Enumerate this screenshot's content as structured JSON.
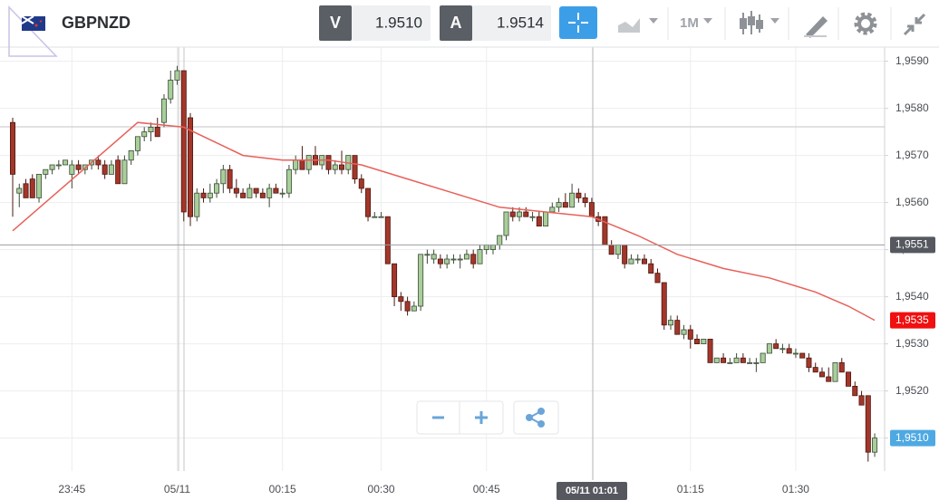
{
  "toolbar": {
    "symbol": "GBPNZD",
    "sell_label": "V",
    "sell_price": "1.9510",
    "buy_label": "A",
    "buy_price": "1.9514",
    "timeframe": "1M"
  },
  "chart_data": {
    "type": "candlestick",
    "crosshair_label": "05/11 01:01",
    "categories": [
      null,
      null,
      null,
      null,
      null,
      null,
      null,
      null,
      null,
      "23:45",
      null,
      null,
      null,
      null,
      null,
      null,
      null,
      null,
      null,
      null,
      null,
      null,
      null,
      null,
      null,
      "05/11",
      null,
      null,
      null,
      null,
      null,
      null,
      null,
      null,
      null,
      null,
      null,
      null,
      null,
      null,
      null,
      "00:15",
      null,
      null,
      null,
      null,
      null,
      null,
      null,
      null,
      null,
      null,
      null,
      null,
      null,
      null,
      "00:30",
      null,
      null,
      null,
      null,
      null,
      null,
      null,
      null,
      null,
      null,
      null,
      null,
      null,
      null,
      null,
      "00:45",
      null,
      null,
      null,
      null,
      null,
      null,
      null,
      null,
      null,
      null,
      null,
      null,
      null,
      null,
      null,
      null,
      null,
      null,
      null,
      null,
      null,
      null,
      null,
      null,
      null,
      null,
      null,
      null,
      null,
      null,
      "01:15",
      null,
      null,
      null,
      null,
      null,
      null,
      null,
      null,
      null,
      null,
      null,
      null,
      null,
      null,
      null,
      "01:30",
      null,
      null,
      null,
      null,
      null,
      null,
      null,
      null,
      null,
      null,
      null,
      null
    ],
    "open": [
      1.9577,
      1.9562,
      1.9564,
      1.9565,
      1.9561,
      1.9566,
      1.9567,
      1.9568,
      1.9568,
      1.9566,
      1.9568,
      1.9567,
      1.9568,
      1.9569,
      1.9568,
      1.9566,
      1.9569,
      1.9564,
      1.9569,
      1.9571,
      1.9574,
      1.9575,
      1.9576,
      1.9577,
      1.9582,
      1.9586,
      1.9588,
      1.9578,
      1.9557,
      1.9562,
      1.9561,
      1.9562,
      1.9564,
      1.9567,
      1.9563,
      1.9562,
      1.9561,
      1.9563,
      1.9562,
      1.9561,
      1.9563,
      1.9562,
      1.9562,
      1.9567,
      1.9569,
      1.9567,
      1.957,
      1.9568,
      1.957,
      1.9567,
      1.9568,
      1.9567,
      1.957,
      1.9565,
      1.9563,
      1.9557,
      1.9557,
      1.9557,
      1.9547,
      1.954,
      1.9539,
      1.9537,
      1.9538,
      1.9549,
      1.9548,
      1.9548,
      1.9547,
      1.9548,
      1.9548,
      1.9548,
      1.9549,
      1.9547,
      1.955,
      1.955,
      1.9551,
      1.9553,
      1.9558,
      1.9557,
      1.9558,
      1.9557,
      1.9557,
      1.9555,
      1.9558,
      1.9559,
      1.956,
      1.9559,
      1.9562,
      1.9561,
      1.956,
      1.9557,
      1.9557,
      1.9551,
      1.9549,
      1.9551,
      1.9547,
      1.9548,
      1.9548,
      1.9547,
      1.9545,
      1.9543,
      1.9534,
      1.9535,
      1.9532,
      1.9533,
      1.9531,
      1.953,
      1.9531,
      1.9526,
      1.9527,
      1.9526,
      1.9526,
      1.9527,
      1.9526,
      1.9526,
      1.9526,
      1.9528,
      1.953,
      1.9529,
      1.9529,
      1.9528,
      1.9528,
      1.9527,
      1.9525,
      1.9524,
      1.9523,
      1.9522,
      1.9526,
      1.9524,
      1.9521,
      1.9519,
      1.9519,
      1.9507
    ],
    "high": [
      1.9578,
      1.9564,
      1.9565,
      1.9566,
      1.9566,
      1.9567,
      1.9568,
      1.9569,
      1.9569,
      1.9569,
      1.9569,
      1.9568,
      1.9569,
      1.957,
      1.9569,
      1.9569,
      1.957,
      1.957,
      1.9571,
      1.9574,
      1.9576,
      1.9577,
      1.9578,
      1.9583,
      1.9588,
      1.9589,
      1.9588,
      1.9579,
      1.9563,
      1.9563,
      1.9564,
      1.9565,
      1.9568,
      1.9568,
      1.9565,
      1.9563,
      1.9564,
      1.9563,
      1.9563,
      1.9564,
      1.9564,
      1.9563,
      1.9568,
      1.957,
      1.9572,
      1.957,
      1.9572,
      1.957,
      1.957,
      1.9569,
      1.9571,
      1.957,
      1.957,
      1.9566,
      1.9563,
      1.9558,
      1.9558,
      1.9557,
      1.9547,
      1.9541,
      1.954,
      1.9539,
      1.9549,
      1.955,
      1.955,
      1.9549,
      1.9549,
      1.9549,
      1.9549,
      1.955,
      1.955,
      1.9551,
      1.9551,
      1.9551,
      1.9553,
      1.9558,
      1.9559,
      1.9559,
      1.9559,
      1.9558,
      1.9558,
      1.9558,
      1.956,
      1.9561,
      1.9562,
      1.9564,
      1.9563,
      1.9562,
      1.9561,
      1.9558,
      1.9557,
      1.9552,
      1.9551,
      1.9551,
      1.9549,
      1.9549,
      1.9549,
      1.9548,
      1.9546,
      1.9543,
      1.9536,
      1.9536,
      1.9534,
      1.9534,
      1.9532,
      1.9531,
      1.9531,
      1.9527,
      1.9528,
      1.9527,
      1.9528,
      1.9528,
      1.9527,
      1.9527,
      1.9528,
      1.953,
      1.9531,
      1.953,
      1.953,
      1.9529,
      1.9528,
      1.9528,
      1.9526,
      1.9525,
      1.9525,
      1.9526,
      1.9527,
      1.9524,
      1.9522,
      1.952,
      1.9519,
      1.9511
    ],
    "low": [
      1.9557,
      1.9559,
      1.9561,
      1.9561,
      1.956,
      1.9565,
      1.9566,
      1.9567,
      1.9568,
      1.9563,
      1.9566,
      1.9566,
      1.9567,
      1.9567,
      1.9565,
      1.9566,
      1.9564,
      1.9564,
      1.9568,
      1.957,
      1.9573,
      1.9573,
      1.9574,
      1.9576,
      1.9581,
      1.9585,
      1.9556,
      1.9555,
      1.9556,
      1.956,
      1.956,
      1.9561,
      1.9562,
      1.9562,
      1.9561,
      1.9561,
      1.9561,
      1.9561,
      1.9561,
      1.9559,
      1.9562,
      1.9561,
      1.9561,
      1.9566,
      1.9567,
      1.9566,
      1.9568,
      1.9567,
      1.9566,
      1.9566,
      1.9566,
      1.9566,
      1.9564,
      1.9562,
      1.9556,
      1.9557,
      1.9557,
      1.9547,
      1.9538,
      1.9537,
      1.9536,
      1.9537,
      1.9537,
      1.9547,
      1.9547,
      1.9546,
      1.9546,
      1.9547,
      1.9546,
      1.9548,
      1.9546,
      1.9547,
      1.9549,
      1.9549,
      1.955,
      1.9552,
      1.9556,
      1.9556,
      1.9557,
      1.9556,
      1.9555,
      1.9555,
      1.9558,
      1.9558,
      1.9559,
      1.9559,
      1.956,
      1.9559,
      1.9557,
      1.9555,
      1.9551,
      1.9549,
      1.9548,
      1.9546,
      1.9547,
      1.9547,
      1.9547,
      1.9545,
      1.9543,
      1.9533,
      1.9533,
      1.9532,
      1.9531,
      1.9529,
      1.953,
      1.953,
      1.9526,
      1.9526,
      1.9526,
      1.9526,
      1.9526,
      1.9526,
      1.9526,
      1.9524,
      1.9526,
      1.9528,
      1.9529,
      1.9528,
      1.9528,
      1.9527,
      1.9527,
      1.9524,
      1.9524,
      1.9523,
      1.9522,
      1.9522,
      1.9524,
      1.9521,
      1.9519,
      1.9517,
      1.9505,
      1.9506
    ],
    "close": [
      1.9566,
      1.9563,
      1.9561,
      1.9561,
      1.9566,
      1.9567,
      1.9568,
      1.9568,
      1.9569,
      1.9568,
      1.9567,
      1.9568,
      1.9569,
      1.9568,
      1.9566,
      1.9568,
      1.9564,
      1.9569,
      1.9571,
      1.9574,
      1.9575,
      1.9576,
      1.9574,
      1.9582,
      1.9586,
      1.9588,
      1.9558,
      1.9557,
      1.9562,
      1.9561,
      1.9562,
      1.9564,
      1.9567,
      1.9563,
      1.9562,
      1.9561,
      1.9563,
      1.9562,
      1.9561,
      1.9563,
      1.9562,
      1.9562,
      1.9567,
      1.9569,
      1.9567,
      1.957,
      1.9568,
      1.957,
      1.9567,
      1.9568,
      1.9567,
      1.957,
      1.9565,
      1.9563,
      1.9557,
      1.9557,
      1.9557,
      1.9547,
      1.954,
      1.9539,
      1.9537,
      1.9538,
      1.9549,
      1.9549,
      1.9549,
      1.9547,
      1.9548,
      1.9548,
      1.9548,
      1.9549,
      1.9547,
      1.955,
      1.9551,
      1.9551,
      1.9553,
      1.9558,
      1.9557,
      1.9558,
      1.9557,
      1.9557,
      1.9555,
      1.9558,
      1.9559,
      1.956,
      1.9559,
      1.9562,
      1.9561,
      1.956,
      1.9557,
      1.9556,
      1.9551,
      1.9549,
      1.9551,
      1.9547,
      1.9548,
      1.9548,
      1.9547,
      1.9545,
      1.9543,
      1.9534,
      1.9535,
      1.9532,
      1.9533,
      1.9531,
      1.953,
      1.9531,
      1.9526,
      1.9527,
      1.9526,
      1.9526,
      1.9527,
      1.9526,
      1.9526,
      1.9526,
      1.9528,
      1.953,
      1.9529,
      1.9529,
      1.9528,
      1.9528,
      1.9527,
      1.9525,
      1.9524,
      1.9523,
      1.9522,
      1.9526,
      1.9524,
      1.9521,
      1.9519,
      1.9517,
      1.9507,
      1.951
    ],
    "up_color": "#a8cf99",
    "down_color": "#a3362a",
    "ma": {
      "color": "#e8605a",
      "x": [
        0,
        19,
        26,
        35,
        41,
        48,
        53,
        60,
        67,
        74,
        81,
        88,
        95,
        101,
        108,
        115,
        122,
        127,
        131
      ],
      "values": [
        1.9554,
        1.9577,
        1.9576,
        1.957,
        1.9569,
        1.9569,
        1.9568,
        1.9565,
        1.9562,
        1.9559,
        1.9558,
        1.9557,
        1.9553,
        1.9549,
        1.9546,
        1.9544,
        1.9541,
        1.9538,
        1.9535
      ]
    },
    "ylim": [
      1.9503,
      1.9593
    ],
    "yticks": [
      {
        "value": 1.951,
        "label": "1,9510"
      },
      {
        "value": 1.952,
        "label": "1,9520"
      },
      {
        "value": 1.953,
        "label": "1,9530"
      },
      {
        "value": 1.954,
        "label": "1,9540"
      },
      {
        "value": 1.955,
        "label": "1,9550"
      },
      {
        "value": 1.956,
        "label": "1,9560"
      },
      {
        "value": 1.957,
        "label": "1,9570"
      },
      {
        "value": 1.958,
        "label": "1,9580"
      },
      {
        "value": 1.959,
        "label": "1,9590"
      }
    ],
    "grid": true,
    "price_labels": [
      {
        "value": 1.9551,
        "label": "1,9551",
        "color": "#55595f"
      },
      {
        "value": 1.9535,
        "label": "1,9535",
        "color": "#f01010"
      },
      {
        "value": 1.951,
        "label": "1,9510",
        "color": "#4ea9e2"
      }
    ]
  }
}
